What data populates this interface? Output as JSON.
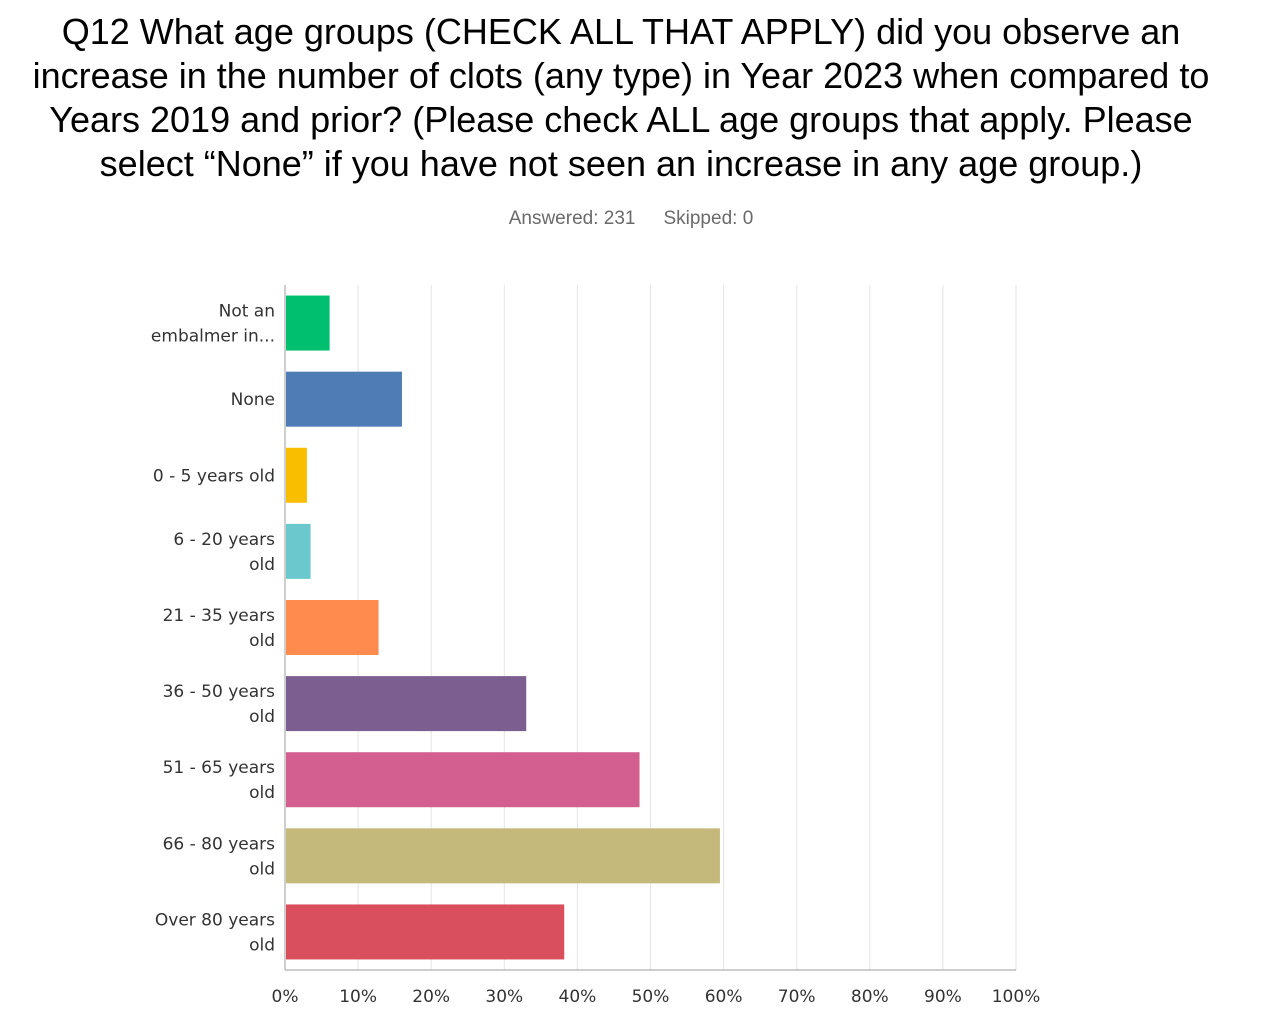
{
  "question": {
    "title_lines": [
      "Q12 What age groups (CHECK ALL THAT APPLY) did you observe an",
      "increase in the number of clots (any type) in Year 2023 when compared to",
      "Years 2019 and prior? (Please check ALL age groups that apply. Please",
      "select “None” if you have not seen an increase in any age group.)"
    ],
    "answered": "Answered: 231",
    "skipped": "Skipped: 0"
  },
  "chart_data": {
    "type": "bar",
    "orientation": "horizontal",
    "categories": [
      [
        "Not an",
        "embalmer in..."
      ],
      [
        "None"
      ],
      [
        "0 - 5 years old"
      ],
      [
        "6 - 20 years",
        "old"
      ],
      [
        "21 - 35 years",
        "old"
      ],
      [
        "36 - 50 years",
        "old"
      ],
      [
        "51 - 65 years",
        "old"
      ],
      [
        "66 - 80 years",
        "old"
      ],
      [
        "Over 80 years",
        "old"
      ]
    ],
    "values": [
      6.1,
      16.0,
      3.0,
      3.5,
      12.8,
      33.0,
      48.5,
      59.5,
      38.2
    ],
    "colors": [
      "#00bf6f",
      "#507cb6",
      "#f9be00",
      "#6bc8cd",
      "#ff8b4f",
      "#7d5e90",
      "#d25f90",
      "#c4b97b",
      "#d94f5e"
    ],
    "xlim": [
      0,
      100
    ],
    "xticks": [
      "0%",
      "10%",
      "20%",
      "30%",
      "40%",
      "50%",
      "60%",
      "70%",
      "80%",
      "90%",
      "100%"
    ],
    "grid": true,
    "legend": false
  }
}
